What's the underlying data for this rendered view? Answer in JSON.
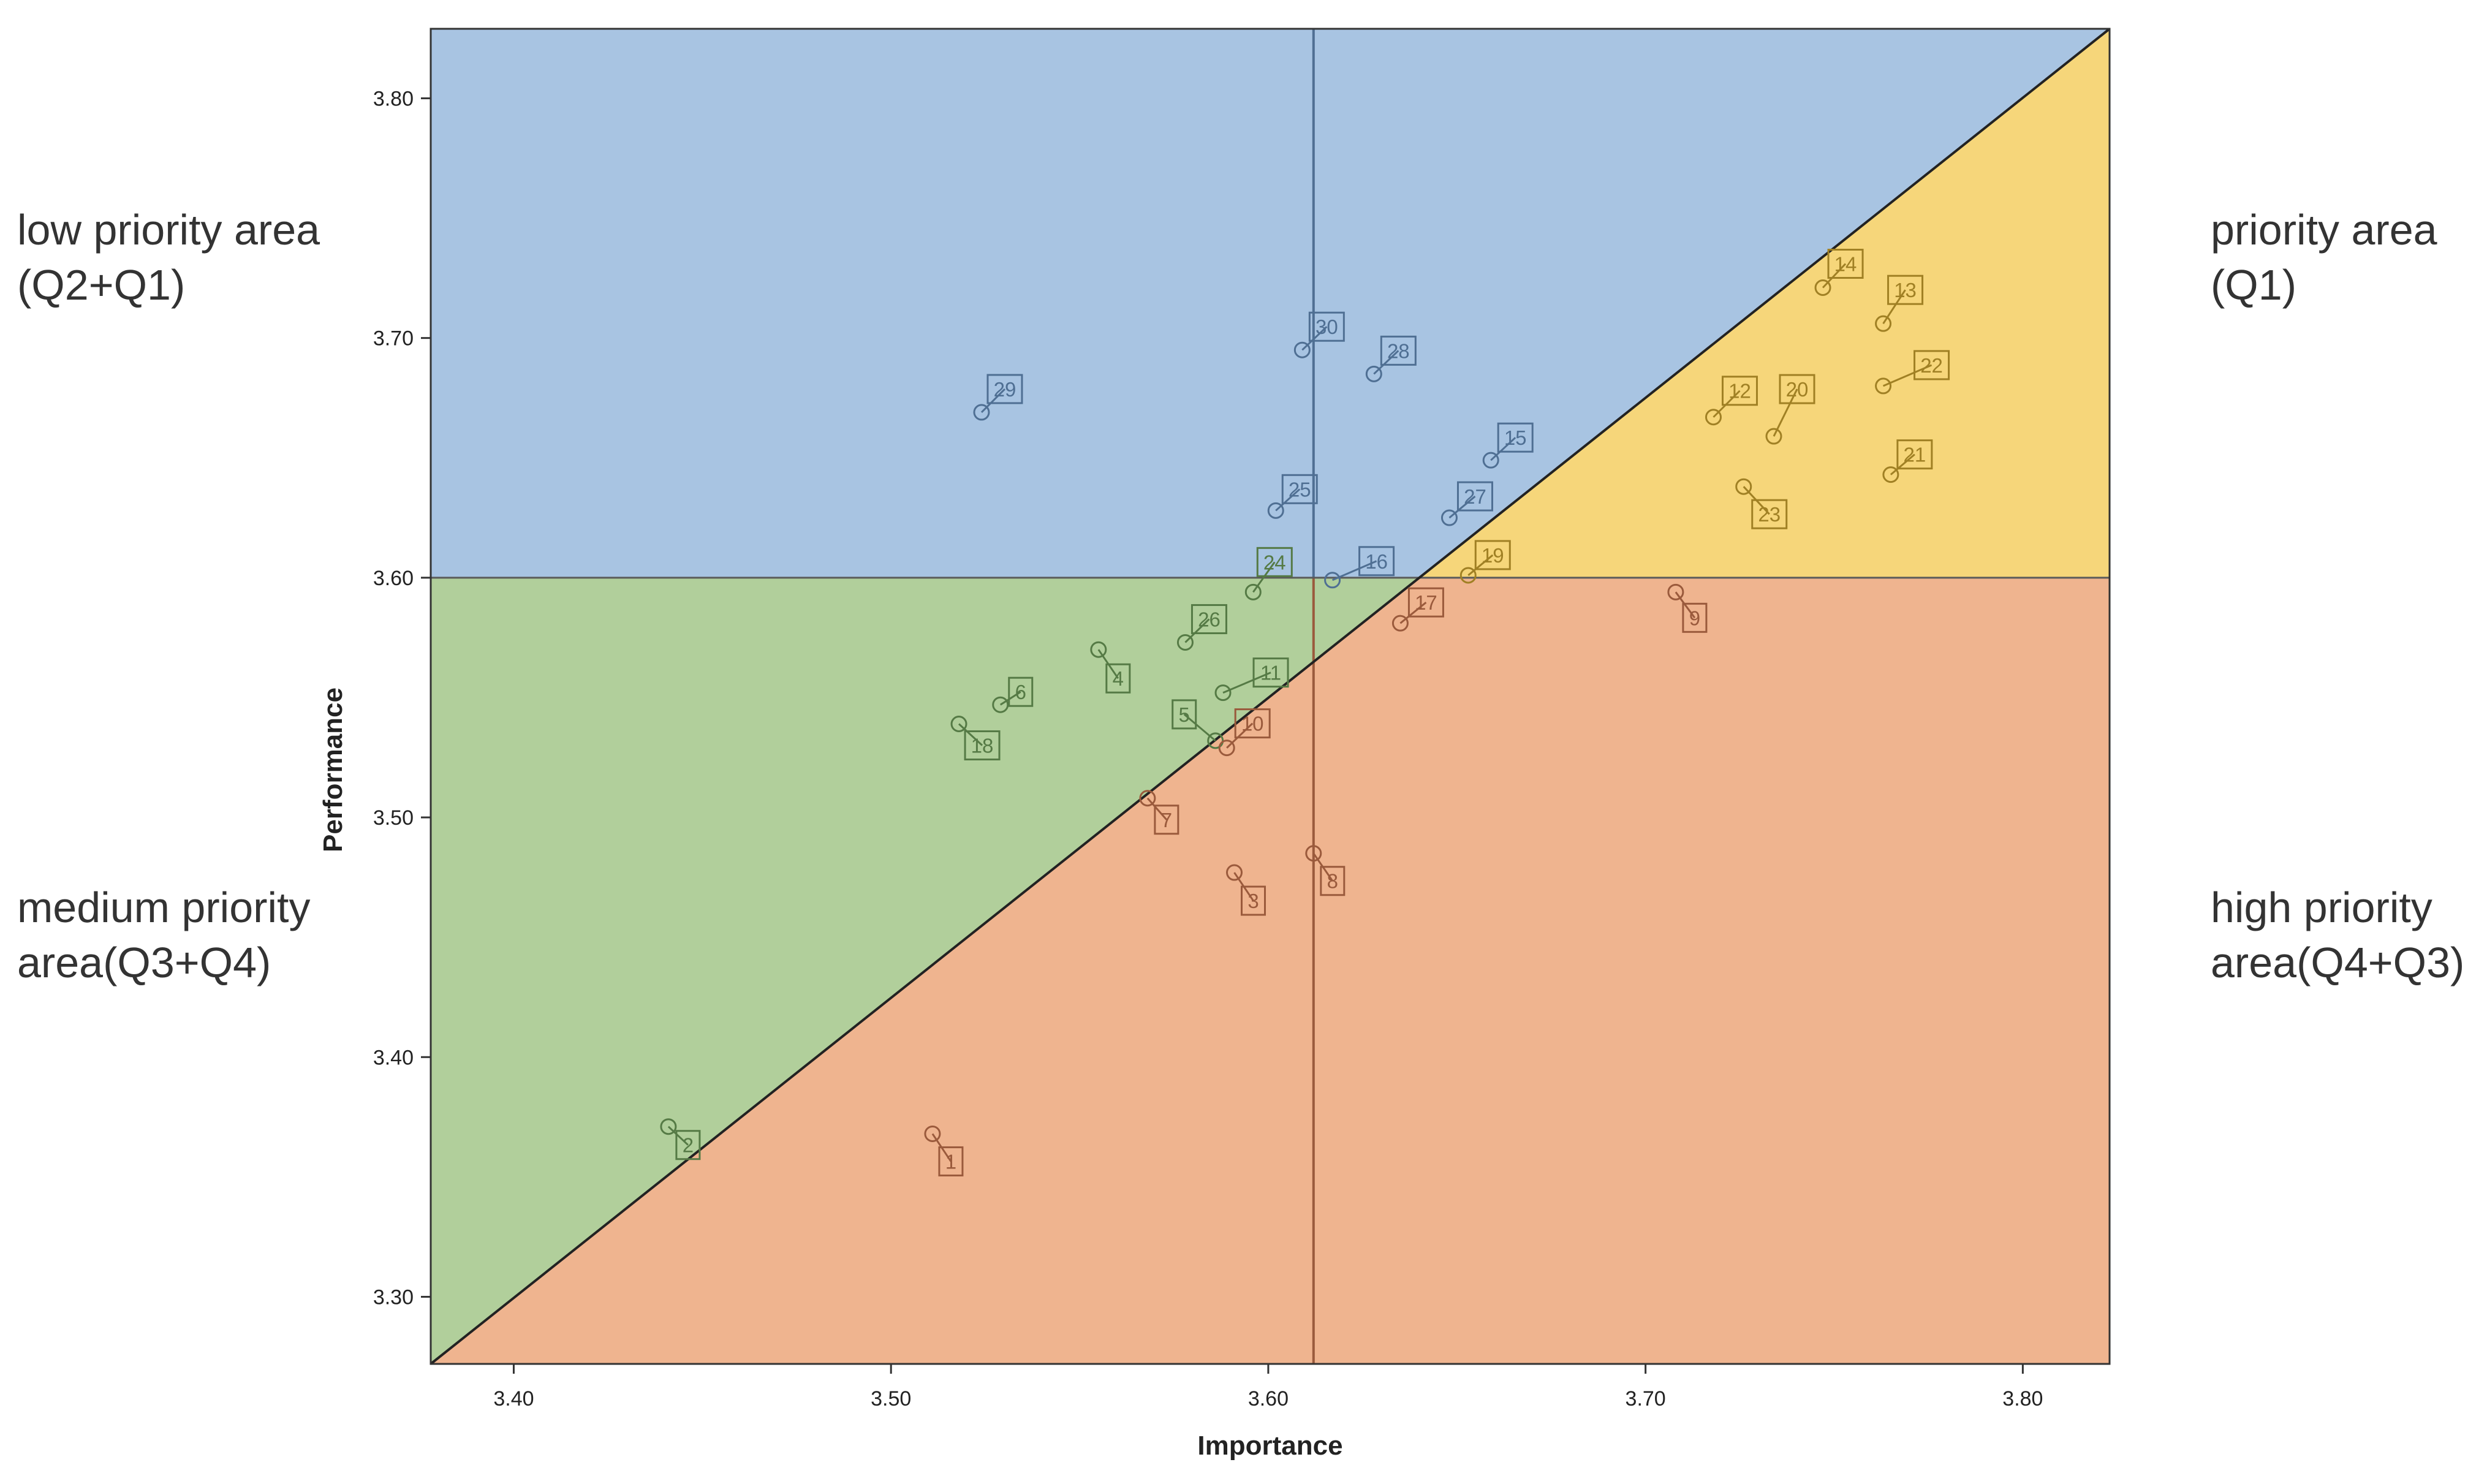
{
  "quadrant_labels": {
    "low_priority": "low priority area\n(Q2+Q1)",
    "priority": "priority area\n(Q1)",
    "medium_priority": "medium priority\narea(Q3+Q4)",
    "high_priority": "high priority\narea(Q4+Q3)"
  },
  "chart_data": {
    "type": "scatter",
    "xlabel": "Importance",
    "ylabel": "Performance",
    "xlim": [
      3.378,
      3.823
    ],
    "ylim": [
      3.272,
      3.829
    ],
    "x_ticks": [
      "3.40",
      "3.50",
      "3.60",
      "3.70",
      "3.80"
    ],
    "y_ticks": [
      "3.30",
      "3.40",
      "3.50",
      "3.60",
      "3.70",
      "3.80"
    ],
    "x_tick_values": [
      3.4,
      3.5,
      3.6,
      3.7,
      3.8
    ],
    "y_tick_values": [
      3.3,
      3.4,
      3.5,
      3.6,
      3.7,
      3.8
    ],
    "reference_lines": {
      "importance_mean": 3.612,
      "performance_mean": 3.6,
      "diagonal": "iso-priority line"
    },
    "grid": false,
    "colors": {
      "low_priority": "#a8c4e2",
      "priority": "#f6d67a",
      "medium_priority": "#b1cf9b",
      "high_priority": "#efb48f",
      "low_priority_mark": "#4f6f93",
      "priority_mark": "#a08024",
      "medium_priority_mark": "#557a45",
      "high_priority_mark": "#9a5a3c"
    },
    "points": [
      {
        "label": "1",
        "x": 3.511,
        "y": 3.368,
        "zone": "high_priority"
      },
      {
        "label": "2",
        "x": 3.441,
        "y": 3.371,
        "zone": "medium_priority"
      },
      {
        "label": "3",
        "x": 3.591,
        "y": 3.477,
        "zone": "high_priority"
      },
      {
        "label": "4",
        "x": 3.555,
        "y": 3.57,
        "zone": "medium_priority"
      },
      {
        "label": "5",
        "x": 3.586,
        "y": 3.532,
        "zone": "medium_priority"
      },
      {
        "label": "6",
        "x": 3.529,
        "y": 3.547,
        "zone": "medium_priority"
      },
      {
        "label": "7",
        "x": 3.568,
        "y": 3.508,
        "zone": "high_priority"
      },
      {
        "label": "8",
        "x": 3.612,
        "y": 3.485,
        "zone": "high_priority"
      },
      {
        "label": "9",
        "x": 3.708,
        "y": 3.594,
        "zone": "high_priority"
      },
      {
        "label": "10",
        "x": 3.589,
        "y": 3.529,
        "zone": "high_priority"
      },
      {
        "label": "11",
        "x": 3.588,
        "y": 3.552,
        "zone": "medium_priority"
      },
      {
        "label": "12",
        "x": 3.718,
        "y": 3.667,
        "zone": "priority"
      },
      {
        "label": "13",
        "x": 3.763,
        "y": 3.706,
        "zone": "priority"
      },
      {
        "label": "14",
        "x": 3.747,
        "y": 3.721,
        "zone": "priority"
      },
      {
        "label": "15",
        "x": 3.659,
        "y": 3.649,
        "zone": "low_priority"
      },
      {
        "label": "16",
        "x": 3.617,
        "y": 3.599,
        "zone": "low_priority"
      },
      {
        "label": "17",
        "x": 3.635,
        "y": 3.581,
        "zone": "high_priority"
      },
      {
        "label": "18",
        "x": 3.518,
        "y": 3.539,
        "zone": "medium_priority"
      },
      {
        "label": "19",
        "x": 3.653,
        "y": 3.601,
        "zone": "priority"
      },
      {
        "label": "20",
        "x": 3.734,
        "y": 3.659,
        "zone": "priority"
      },
      {
        "label": "21",
        "x": 3.765,
        "y": 3.643,
        "zone": "priority"
      },
      {
        "label": "22",
        "x": 3.763,
        "y": 3.68,
        "zone": "priority"
      },
      {
        "label": "23",
        "x": 3.726,
        "y": 3.638,
        "zone": "priority"
      },
      {
        "label": "24",
        "x": 3.596,
        "y": 3.594,
        "zone": "medium_priority"
      },
      {
        "label": "25",
        "x": 3.602,
        "y": 3.628,
        "zone": "low_priority"
      },
      {
        "label": "26",
        "x": 3.578,
        "y": 3.573,
        "zone": "medium_priority"
      },
      {
        "label": "27",
        "x": 3.648,
        "y": 3.625,
        "zone": "low_priority"
      },
      {
        "label": "28",
        "x": 3.628,
        "y": 3.685,
        "zone": "low_priority"
      },
      {
        "label": "29",
        "x": 3.524,
        "y": 3.669,
        "zone": "low_priority"
      },
      {
        "label": "30",
        "x": 3.609,
        "y": 3.695,
        "zone": "low_priority"
      }
    ]
  }
}
